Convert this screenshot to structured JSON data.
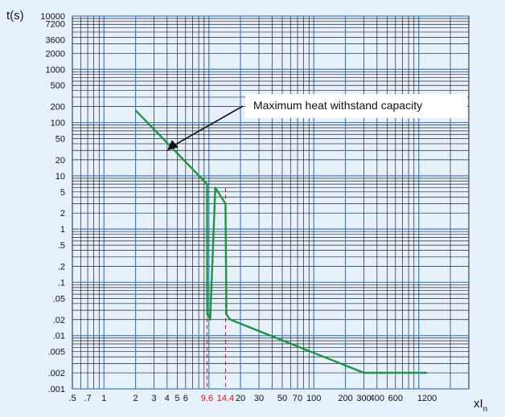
{
  "chart_data": {
    "type": "line",
    "title": "",
    "xlabel": "xI",
    "xlabel_sub": "n",
    "ylabel": "t(s)",
    "x_scale": "log",
    "y_scale": "log",
    "xlim": [
      0.5,
      3000
    ],
    "ylim": [
      0.001,
      10000
    ],
    "grid": true,
    "colors": {
      "curve": "#1a9641",
      "grid_major": "#3a7fd0",
      "grid_minor": "#222222",
      "marker": "#d0121b",
      "background": "#e6f1fb"
    },
    "x_ticks": [
      {
        "value": 0.5,
        "label": ".5"
      },
      {
        "value": 0.7,
        "label": ".7"
      },
      {
        "value": 1,
        "label": "1"
      },
      {
        "value": 2,
        "label": "2"
      },
      {
        "value": 3,
        "label": "3"
      },
      {
        "value": 4,
        "label": "4"
      },
      {
        "value": 5,
        "label": "5"
      },
      {
        "value": 6,
        "label": "6"
      },
      {
        "value": 9.6,
        "label": "9.6",
        "highlight": true
      },
      {
        "value": 14.4,
        "label": "14.4",
        "highlight": true
      },
      {
        "value": 20,
        "label": "20"
      },
      {
        "value": 30,
        "label": "30"
      },
      {
        "value": 50,
        "label": "50"
      },
      {
        "value": 70,
        "label": "70"
      },
      {
        "value": 100,
        "label": "100"
      },
      {
        "value": 200,
        "label": "200"
      },
      {
        "value": 300,
        "label": "300"
      },
      {
        "value": 400,
        "label": "400"
      },
      {
        "value": 600,
        "label": "600"
      },
      {
        "value": 1200,
        "label": "1200"
      }
    ],
    "y_ticks": [
      {
        "value": 10000,
        "label": "10000"
      },
      {
        "value": 7200,
        "label": "7200"
      },
      {
        "value": 3600,
        "label": "3600"
      },
      {
        "value": 2000,
        "label": "2000"
      },
      {
        "value": 1000,
        "label": "1000"
      },
      {
        "value": 500,
        "label": "500"
      },
      {
        "value": 200,
        "label": "200"
      },
      {
        "value": 100,
        "label": "100"
      },
      {
        "value": 50,
        "label": "50"
      },
      {
        "value": 20,
        "label": "20"
      },
      {
        "value": 10,
        "label": "10"
      },
      {
        "value": 5,
        "label": "5"
      },
      {
        "value": 2,
        "label": "2"
      },
      {
        "value": 1,
        "label": "1"
      },
      {
        "value": 0.5,
        "label": ".5"
      },
      {
        "value": 0.2,
        "label": ".2"
      },
      {
        "value": 0.1,
        "label": ".1"
      },
      {
        "value": 0.05,
        "label": ".05"
      },
      {
        "value": 0.02,
        "label": ".02"
      },
      {
        "value": 0.01,
        "label": ".01"
      },
      {
        "value": 0.005,
        "label": ".005"
      },
      {
        "value": 0.002,
        "label": ".002"
      },
      {
        "value": 0.001,
        "label": ".001"
      }
    ],
    "series": [
      {
        "points": [
          {
            "x": 2,
            "y": 170
          },
          {
            "x": 9.6,
            "y": 7
          },
          {
            "x": 9.65,
            "y": 0.025
          },
          {
            "x": 10.3,
            "y": 0.02
          },
          {
            "x": 11.5,
            "y": 6
          },
          {
            "x": 14.4,
            "y": 3
          },
          {
            "x": 14.7,
            "y": 0.025
          },
          {
            "x": 16,
            "y": 0.02
          },
          {
            "x": 300,
            "y": 0.002
          },
          {
            "x": 400,
            "y": 0.002
          },
          {
            "x": 1200,
            "y": 0.002
          }
        ]
      }
    ],
    "markers": [
      {
        "x": 9.6,
        "label": "9.6"
      },
      {
        "x": 14.4,
        "label": "14.4"
      }
    ],
    "annotations": [
      {
        "text": "Maximum heat withstand capacity",
        "x": 4,
        "y": 30
      }
    ]
  }
}
